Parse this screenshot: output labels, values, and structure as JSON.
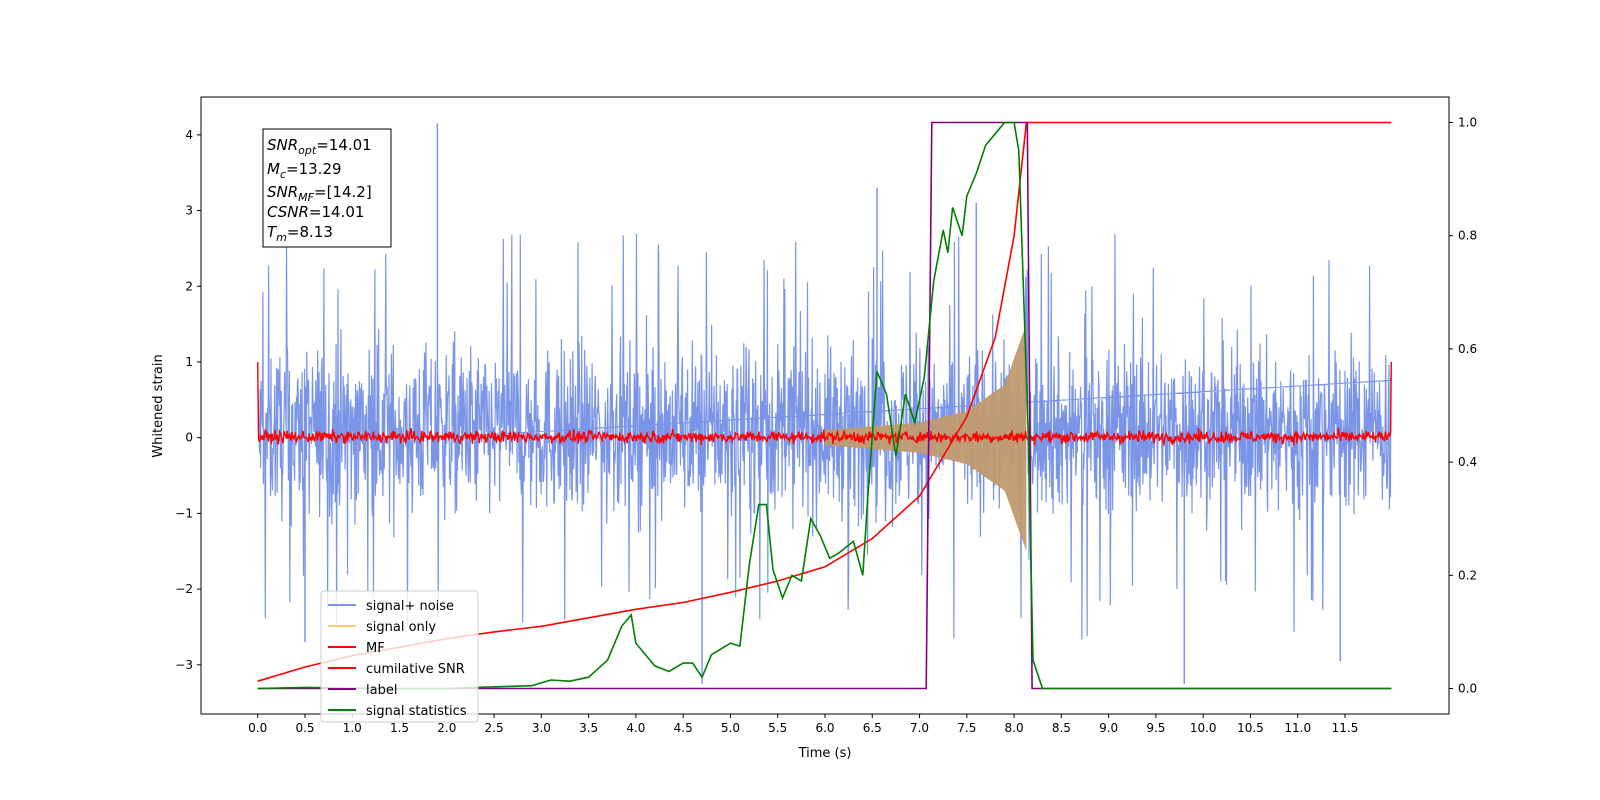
{
  "chart_data": {
    "type": "line",
    "xlabel": "Time (s)",
    "ylabel": "Whitened strain",
    "xlim": [
      -0.6,
      12.6
    ],
    "ylim": [
      -3.65,
      4.5
    ],
    "ylim_right": [
      -0.045,
      1.045
    ],
    "x_ticks": [
      "0.0",
      "0.5",
      "1.0",
      "1.5",
      "2.0",
      "2.5",
      "3.0",
      "3.5",
      "4.0",
      "4.5",
      "5.0",
      "5.5",
      "6.0",
      "6.5",
      "7.0",
      "7.5",
      "8.0",
      "8.5",
      "9.0",
      "9.5",
      "10.0",
      "10.5",
      "11.0",
      "11.5"
    ],
    "y_ticks": [
      "4",
      "3",
      "2",
      "1",
      "0",
      "−1",
      "−2",
      "−3"
    ],
    "y_right_ticks": [
      "1.0",
      "0.8",
      "0.6",
      "0.4",
      "0.2",
      "0.0"
    ],
    "annotation": {
      "snr_opt": "=14.01",
      "mc": "=13.29",
      "snr_mf": "=[14.2]",
      "csnr": "=14.01",
      "tm": "=8.13"
    },
    "legend": {
      "placement": "lower-left",
      "entries": [
        "signal+ noise",
        "signal only",
        "MF",
        "cumilative SNR",
        "label",
        "signal statistics"
      ]
    },
    "colors": {
      "signal_noise": "#7a95e8",
      "signal_only": "#f5cf7a",
      "signal_fill": "#c09a70",
      "mf": "#ff0000",
      "cumulative_snr": "#ff0000",
      "label": "#800080",
      "signal_statistics": "#008000"
    },
    "series": [
      {
        "name": "signal+ noise",
        "axis": "left",
        "description_type": "noise",
        "x_range": [
          0.0,
          11.99
        ],
        "band_approx": [
          -1.0,
          1.2
        ],
        "notable_peaks": [
          [
            1.9,
            4.15
          ],
          [
            4.7,
            -3.25
          ],
          [
            9.8,
            -3.25
          ],
          [
            6.55,
            3.3
          ],
          [
            7.6,
            3.1
          ],
          [
            0.5,
            -2.7
          ],
          [
            11.45,
            -2.95
          ]
        ]
      },
      {
        "name": "signal only",
        "axis": "left",
        "description_type": "chirp",
        "x_range": [
          6.0,
          8.13
        ],
        "amplitude_points": [
          [
            6.0,
            0.1
          ],
          [
            7.0,
            0.2
          ],
          [
            7.5,
            0.35
          ],
          [
            7.9,
            0.7
          ],
          [
            8.13,
            1.5
          ]
        ]
      },
      {
        "name": "MF",
        "axis": "left",
        "description_type": "noise",
        "x_range": [
          0.0,
          11.99
        ],
        "band_approx": [
          -0.1,
          0.12
        ],
        "edge_values": [
          [
            0.0,
            1.0
          ],
          [
            11.99,
            1.0
          ]
        ]
      },
      {
        "name": "cumilative SNR",
        "axis": "right",
        "points": [
          [
            0.0,
            0.013
          ],
          [
            0.5,
            0.038
          ],
          [
            1.0,
            0.058
          ],
          [
            1.5,
            0.073
          ],
          [
            2.0,
            0.088
          ],
          [
            2.5,
            0.1
          ],
          [
            3.0,
            0.11
          ],
          [
            3.5,
            0.125
          ],
          [
            4.0,
            0.14
          ],
          [
            4.5,
            0.152
          ],
          [
            5.0,
            0.17
          ],
          [
            5.5,
            0.19
          ],
          [
            6.0,
            0.215
          ],
          [
            6.5,
            0.265
          ],
          [
            7.0,
            0.34
          ],
          [
            7.5,
            0.48
          ],
          [
            7.8,
            0.62
          ],
          [
            8.0,
            0.8
          ],
          [
            8.13,
            1.0
          ],
          [
            11.99,
            1.0
          ]
        ]
      },
      {
        "name": "label",
        "axis": "right",
        "points": [
          [
            0.0,
            0.0
          ],
          [
            7.07,
            0.0
          ],
          [
            7.13,
            1.0
          ],
          [
            8.14,
            1.0
          ],
          [
            8.19,
            0.0
          ],
          [
            11.99,
            0.0
          ]
        ]
      },
      {
        "name": "signal statistics",
        "axis": "right",
        "points": [
          [
            0.0,
            0.0
          ],
          [
            0.5,
            0.002
          ],
          [
            1.0,
            0.001
          ],
          [
            1.5,
            0.0
          ],
          [
            2.0,
            0.0
          ],
          [
            2.5,
            0.003
          ],
          [
            2.9,
            0.005
          ],
          [
            3.1,
            0.015
          ],
          [
            3.3,
            0.013
          ],
          [
            3.5,
            0.02
          ],
          [
            3.7,
            0.05
          ],
          [
            3.85,
            0.11
          ],
          [
            3.95,
            0.13
          ],
          [
            4.0,
            0.08
          ],
          [
            4.2,
            0.04
          ],
          [
            4.35,
            0.03
          ],
          [
            4.5,
            0.045
          ],
          [
            4.6,
            0.045
          ],
          [
            4.7,
            0.02
          ],
          [
            4.8,
            0.06
          ],
          [
            5.0,
            0.08
          ],
          [
            5.1,
            0.075
          ],
          [
            5.2,
            0.22
          ],
          [
            5.3,
            0.325
          ],
          [
            5.38,
            0.325
          ],
          [
            5.45,
            0.21
          ],
          [
            5.55,
            0.16
          ],
          [
            5.65,
            0.2
          ],
          [
            5.75,
            0.19
          ],
          [
            5.85,
            0.3
          ],
          [
            5.95,
            0.27
          ],
          [
            6.05,
            0.23
          ],
          [
            6.15,
            0.24
          ],
          [
            6.3,
            0.26
          ],
          [
            6.4,
            0.2
          ],
          [
            6.45,
            0.33
          ],
          [
            6.55,
            0.56
          ],
          [
            6.65,
            0.52
          ],
          [
            6.75,
            0.41
          ],
          [
            6.85,
            0.52
          ],
          [
            6.95,
            0.47
          ],
          [
            7.05,
            0.55
          ],
          [
            7.15,
            0.72
          ],
          [
            7.25,
            0.81
          ],
          [
            7.3,
            0.77
          ],
          [
            7.35,
            0.85
          ],
          [
            7.45,
            0.8
          ],
          [
            7.5,
            0.87
          ],
          [
            7.6,
            0.91
          ],
          [
            7.7,
            0.96
          ],
          [
            7.8,
            0.98
          ],
          [
            7.9,
            1.0
          ],
          [
            8.0,
            1.0
          ],
          [
            8.05,
            0.95
          ],
          [
            8.15,
            0.45
          ],
          [
            8.2,
            0.05
          ],
          [
            8.3,
            0.0
          ],
          [
            11.99,
            0.0
          ]
        ]
      }
    ]
  }
}
